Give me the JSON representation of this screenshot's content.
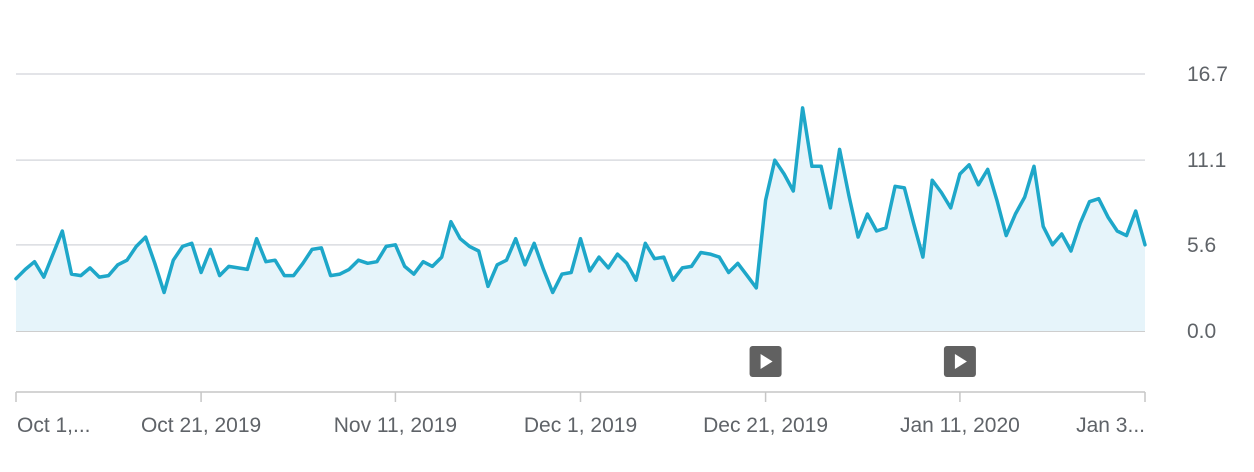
{
  "colors": {
    "line": "#1ea7c9",
    "area": "#e6f4fa",
    "marker": "#616161"
  },
  "icons": [
    "play-icon",
    "play-icon"
  ],
  "chart_data": {
    "type": "area",
    "title": "",
    "xlabel": "",
    "ylabel": "",
    "ylim": [
      0.0,
      16.7
    ],
    "y_ticks": [
      "16.7",
      "11.1",
      "5.6",
      "0.0"
    ],
    "y_tick_values": [
      16.7,
      11.1,
      5.6,
      0.0
    ],
    "x_range": [
      "2019-10-01",
      "2020-01-31"
    ],
    "x_ticks": [
      {
        "date": "2019-10-01",
        "label": "Oct 1,..."
      },
      {
        "date": "2019-10-21",
        "label": "Oct 21, 2019"
      },
      {
        "date": "2019-11-11",
        "label": "Nov 11, 2019"
      },
      {
        "date": "2019-12-01",
        "label": "Dec 1, 2019"
      },
      {
        "date": "2019-12-21",
        "label": "Dec 21, 2019"
      },
      {
        "date": "2020-01-11",
        "label": "Jan 11, 2020"
      },
      {
        "date": "2020-01-31",
        "label": "Jan 3..."
      }
    ],
    "markers": [
      "2019-12-21",
      "2020-01-11"
    ],
    "grid": true,
    "series": [
      {
        "values": [
          3.4,
          4.0,
          4.5,
          3.5,
          5.0,
          6.5,
          3.7,
          3.6,
          4.1,
          3.5,
          3.6,
          4.3,
          4.6,
          5.5,
          6.1,
          4.4,
          2.5,
          4.6,
          5.5,
          5.7,
          3.8,
          5.3,
          3.6,
          4.2,
          4.1,
          4.0,
          6.0,
          4.5,
          4.6,
          3.6,
          3.6,
          4.4,
          5.3,
          5.4,
          3.6,
          3.7,
          4.0,
          4.6,
          4.4,
          4.5,
          5.5,
          5.6,
          4.2,
          3.7,
          4.5,
          4.2,
          4.8,
          7.1,
          6.0,
          5.5,
          5.2,
          2.9,
          4.3,
          4.6,
          6.0,
          4.3,
          5.7,
          4.0,
          2.5,
          3.7,
          3.8,
          6.0,
          3.9,
          4.8,
          4.1,
          5.0,
          4.4,
          3.3,
          5.7,
          4.7,
          4.8,
          3.3,
          4.1,
          4.2,
          5.1,
          5.0,
          4.8,
          3.8,
          4.4,
          3.6,
          2.8,
          8.5,
          11.1,
          10.2,
          9.1,
          14.5,
          10.7,
          10.7,
          8.0,
          11.8,
          8.8,
          6.1,
          7.6,
          6.5,
          6.7,
          9.4,
          9.3,
          7.0,
          4.8,
          9.8,
          9.0,
          8.0,
          10.2,
          10.8,
          9.5,
          10.5,
          8.5,
          6.2,
          7.6,
          8.7,
          10.7,
          6.8,
          5.6,
          6.3,
          5.2,
          7.0,
          8.4,
          8.6,
          7.4,
          6.5,
          6.2,
          7.8,
          5.6
        ]
      }
    ]
  }
}
